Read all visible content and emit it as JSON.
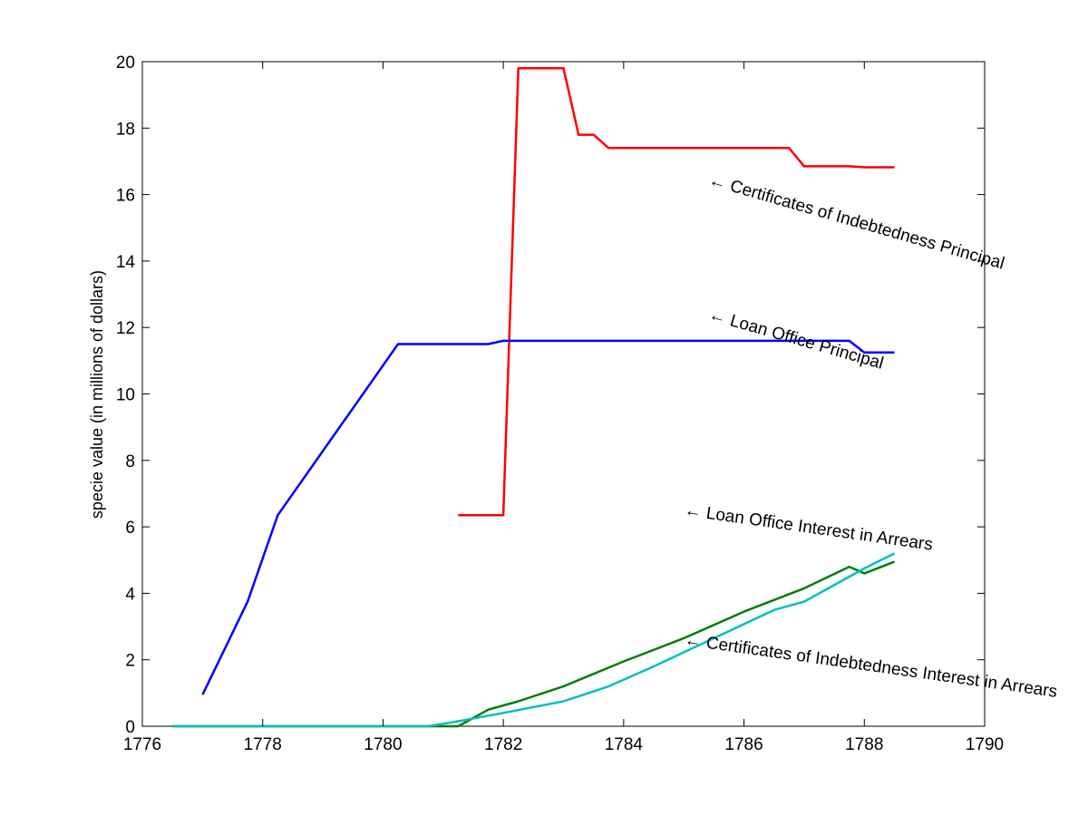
{
  "chart_data": {
    "type": "line",
    "title": "",
    "xlabel": "",
    "ylabel": "specie value (in millions of dollars)",
    "xlim": [
      1776,
      1790
    ],
    "ylim": [
      0,
      20
    ],
    "xticks": [
      1776,
      1778,
      1780,
      1782,
      1784,
      1786,
      1788,
      1790
    ],
    "yticks": [
      0,
      2,
      4,
      6,
      8,
      10,
      12,
      14,
      16,
      18,
      20
    ],
    "grid": false,
    "series": [
      {
        "color": "#ff0000",
        "x": [
          1781.25,
          1782.0,
          1782.25,
          1783.0,
          1783.25,
          1783.5,
          1783.75,
          1784.0,
          1786.75,
          1787.0,
          1787.75,
          1788.0,
          1788.5
        ],
        "y": [
          6.35,
          6.35,
          19.8,
          19.8,
          17.8,
          17.8,
          17.4,
          17.4,
          17.4,
          16.85,
          16.85,
          16.82,
          16.82
        ]
      },
      {
        "color": "#0000ff",
        "x": [
          1777.0,
          1777.75,
          1778.25,
          1780.25,
          1781.75,
          1782.0,
          1787.75,
          1788.0,
          1788.5
        ],
        "y": [
          0.95,
          3.75,
          6.35,
          11.5,
          11.5,
          11.6,
          11.6,
          11.25,
          11.25
        ],
        "labels_position_note": ""
      },
      {
        "color": "#007f00",
        "x": [
          1776.5,
          1781.25,
          1781.75,
          1782.25,
          1783.0,
          1784.0,
          1785.0,
          1786.0,
          1787.0,
          1787.75,
          1788.0,
          1788.5
        ],
        "y": [
          0.0,
          0.0,
          0.5,
          0.75,
          1.2,
          1.95,
          2.65,
          3.45,
          4.15,
          4.8,
          4.6,
          4.95
        ]
      },
      {
        "color": "#00bfbf",
        "x": [
          1776.5,
          1780.75,
          1781.25,
          1782.0,
          1783.0,
          1783.75,
          1784.5,
          1785.5,
          1786.5,
          1787.0,
          1788.0,
          1788.5
        ],
        "y": [
          0.0,
          0.0,
          0.15,
          0.4,
          0.75,
          1.2,
          1.8,
          2.65,
          3.5,
          3.75,
          4.75,
          5.2
        ]
      }
    ],
    "annotations": [
      {
        "text": "← Certificates of Indebtedness Principal",
        "x": 1785.4,
        "y": 16.3,
        "angle": 16
      },
      {
        "text": "← Loan Office Principal",
        "x": 1785.4,
        "y": 12.25,
        "angle": 16
      },
      {
        "text": "← Loan Office Interest in Arrears",
        "x": 1785.0,
        "y": 6.35,
        "angle": 8
      },
      {
        "text": "← Certificates of Indebtedness Interest in Arrears",
        "x": 1785.0,
        "y": 2.45,
        "angle": 8
      }
    ]
  }
}
